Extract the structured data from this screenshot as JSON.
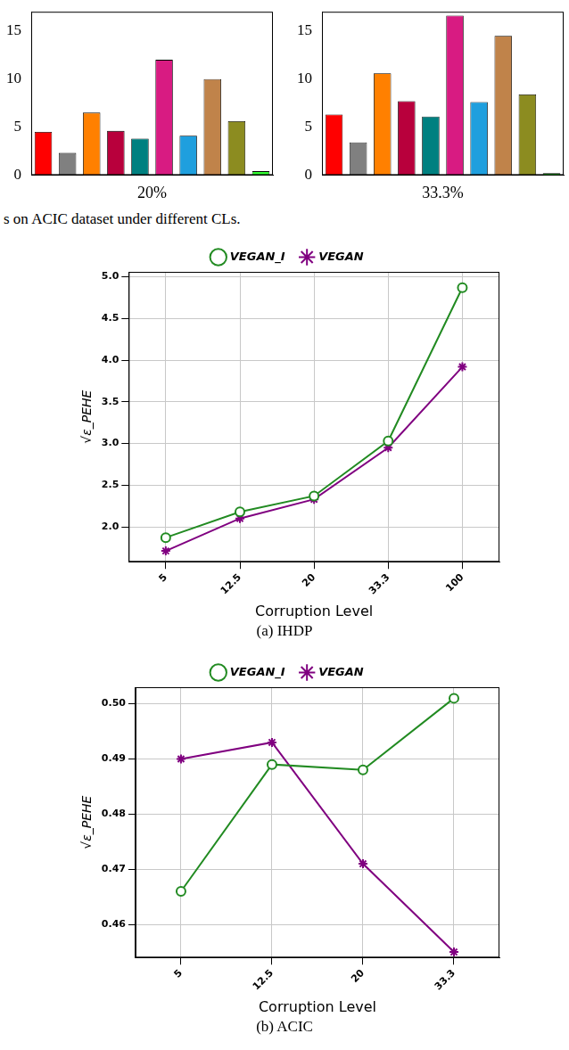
{
  "chart_data": [
    {
      "type": "bar",
      "x_label": "20%",
      "categories": [
        null,
        null,
        null,
        null,
        null,
        null,
        null,
        null,
        null,
        null
      ],
      "values": [
        4.5,
        2.3,
        6.5,
        4.6,
        3.8,
        12.0,
        4.1,
        10.0,
        5.6,
        0.4
      ],
      "colors": [
        "#ff0000",
        "#808080",
        "#ff8000",
        "#b8003c",
        "#008080",
        "#d81b82",
        "#1f9fde",
        "#c0834a",
        "#8c8c20",
        "#33ff33"
      ],
      "ylim": [
        0,
        17
      ],
      "yticks": [
        0,
        5,
        10,
        15
      ],
      "grid": false,
      "tick_labels": "y"
    },
    {
      "type": "bar",
      "x_label": "33.3%",
      "categories": [
        null,
        null,
        null,
        null,
        null,
        null,
        null,
        null,
        null,
        null
      ],
      "values": [
        6.3,
        3.4,
        10.6,
        7.7,
        6.1,
        16.6,
        7.6,
        14.5,
        8.4,
        0.2
      ],
      "colors": [
        "#ff0000",
        "#808080",
        "#ff8000",
        "#b8003c",
        "#008080",
        "#d81b82",
        "#1f9fde",
        "#c0834a",
        "#8c8c20",
        "#33ff33"
      ],
      "ylim": [
        0,
        17
      ],
      "yticks": [
        0,
        5,
        10,
        15
      ],
      "grid": false,
      "tick_labels": "y"
    },
    {
      "type": "line",
      "caption": "(a) IHDP",
      "x_label": "Corruption Level",
      "y_label": "√ε_PEHE",
      "categories": [
        "5",
        "12.5",
        "20",
        "33.3",
        "100"
      ],
      "series": [
        {
          "name": "VEGAN_I",
          "color": "#228b22",
          "marker": "circle",
          "values": [
            1.87,
            2.18,
            2.37,
            3.03,
            4.87
          ]
        },
        {
          "name": "VEGAN",
          "color": "#800080",
          "marker": "star",
          "values": [
            1.71,
            2.1,
            2.33,
            2.95,
            3.92
          ]
        }
      ],
      "ylim": [
        1.58,
        5.06
      ],
      "yticks": [
        {
          "value": 2,
          "label": "2.0"
        },
        2.5,
        {
          "value": 3,
          "label": "3.0"
        },
        3.5,
        {
          "value": 4,
          "label": "4.0"
        },
        4.5,
        {
          "value": 5,
          "label": "5.0"
        }
      ],
      "grid": true,
      "legend": "top"
    },
    {
      "type": "line",
      "caption": "(b) ACIC",
      "x_label": "Corruption Level",
      "y_label": "√ε_PEHE",
      "categories": [
        "5",
        "12.5",
        "20",
        "33.3"
      ],
      "series": [
        {
          "name": "VEGAN_I",
          "color": "#228b22",
          "marker": "circle",
          "values": [
            0.466,
            0.489,
            0.488,
            0.501
          ]
        },
        {
          "name": "VEGAN",
          "color": "#800080",
          "marker": "star",
          "values": [
            0.49,
            0.493,
            0.471,
            0.455
          ]
        }
      ],
      "ylim": [
        0.454,
        0.503
      ],
      "yticks": [
        0.46,
        0.47,
        0.48,
        0.49,
        {
          "value": 0.5,
          "label": "0.50"
        }
      ],
      "grid": true,
      "legend": "top"
    }
  ],
  "caption": "s on ACIC dataset under different CLs."
}
